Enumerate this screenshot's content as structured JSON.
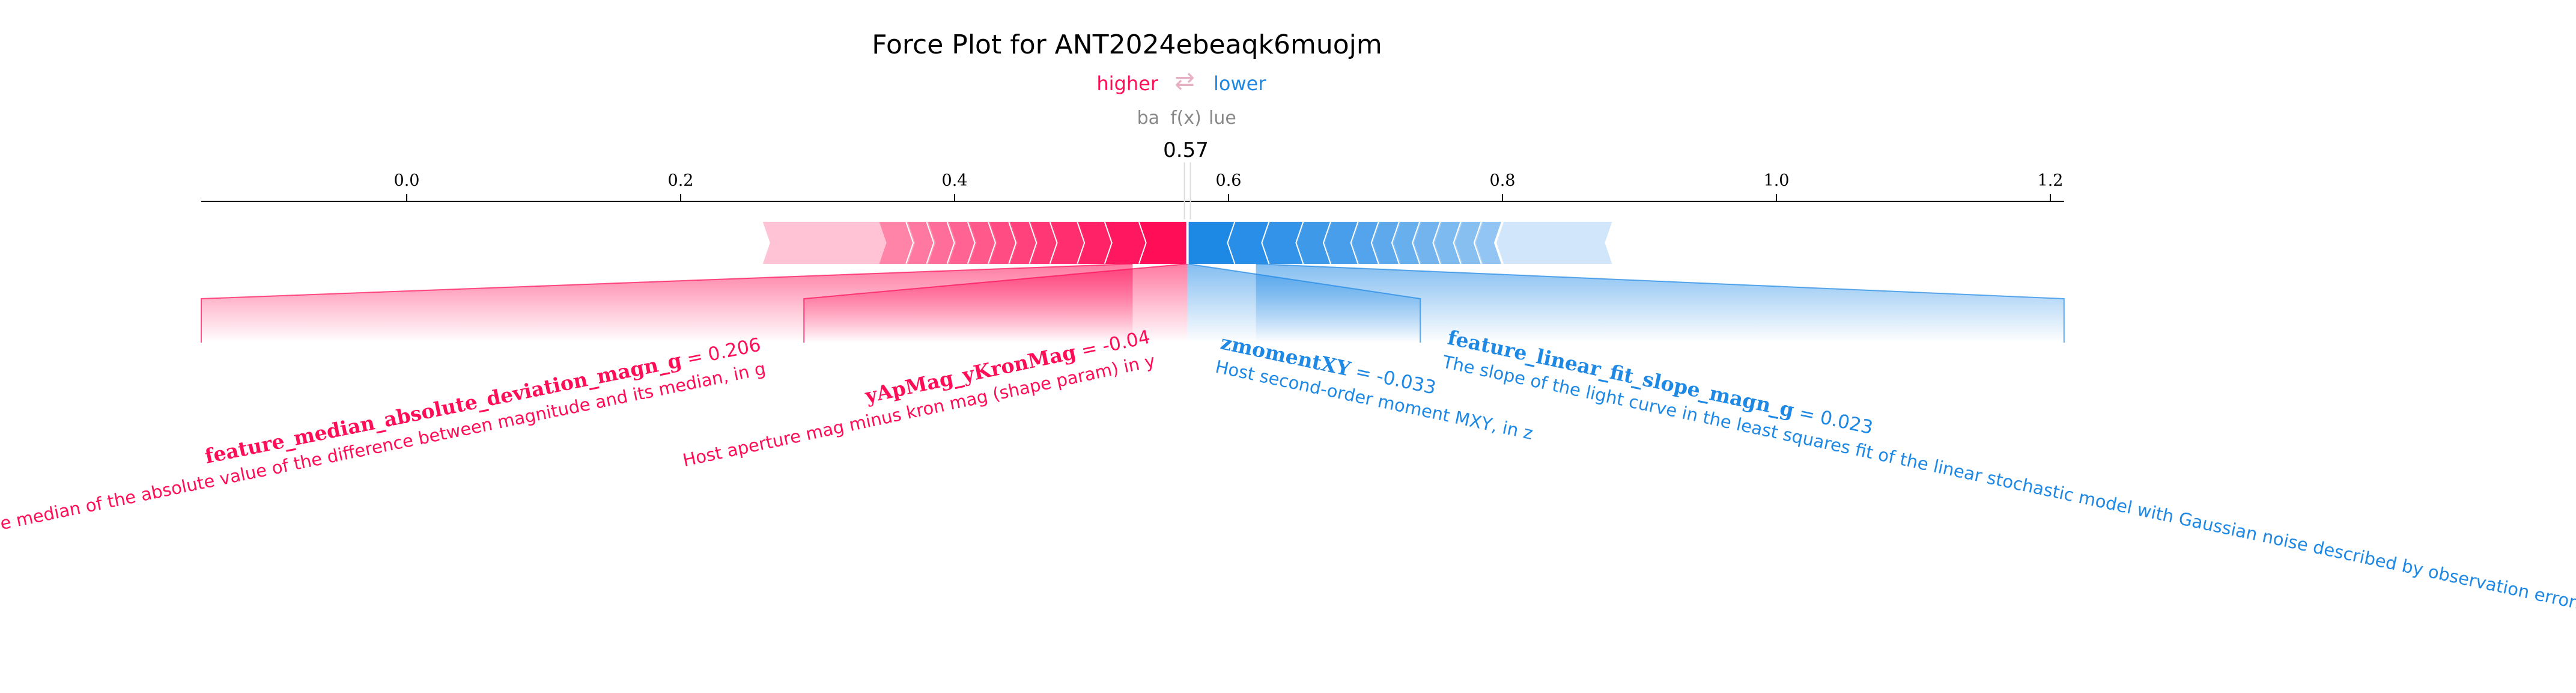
{
  "title": "Force Plot for ANT2024ebeaqk6muojm",
  "legend": {
    "higher": "higher",
    "lower": "lower",
    "arrow": "⇄",
    "higher_color": "#ff0d57",
    "lower_color": "#1e88e5"
  },
  "base_label": "ba",
  "fx_label": "f(x)",
  "base_label_tail": "lue",
  "chart_data": {
    "type": "force",
    "output_value": 0.57,
    "output_label": "0.57",
    "xlim": [
      -0.15,
      1.21
    ],
    "ticks": [
      0.0,
      0.2,
      0.4,
      0.6,
      0.8,
      1.0,
      1.2
    ],
    "tick_labels": [
      "0.0",
      "0.2",
      "0.4",
      "0.6",
      "0.8",
      "1.0",
      "1.2"
    ],
    "positive_extent": [
      0.26,
      0.57
    ],
    "negative_extent": [
      0.57,
      0.88
    ],
    "features": [
      {
        "name": "feature_median_absolute_deviation_magn_g",
        "value_text": " = 0.206",
        "description": "The median of the absolute value of the difference between magnitude and its median, in g",
        "effect": "positive",
        "range": [
          -0.15,
          0.53
        ]
      },
      {
        "name": "yApMag_yKronMag",
        "value_text": " = -0.04",
        "description": "Host aperture mag minus kron mag (shape param) in y",
        "effect": "positive",
        "range": [
          0.29,
          0.57
        ]
      },
      {
        "name": "zmomentXY",
        "value_text": " = -0.033",
        "description": "Host second-order moment MXY, in z",
        "effect": "negative",
        "range": [
          0.57,
          0.74
        ]
      },
      {
        "name": "feature_linear_fit_slope_magn_g",
        "value_text": " = 0.023",
        "description": "The slope of the light curve in the least squares fit of the linear stochastic model with Gaussian noise described by observation errors, in g",
        "effect": "negative",
        "range": [
          0.62,
          1.21
        ]
      }
    ]
  }
}
